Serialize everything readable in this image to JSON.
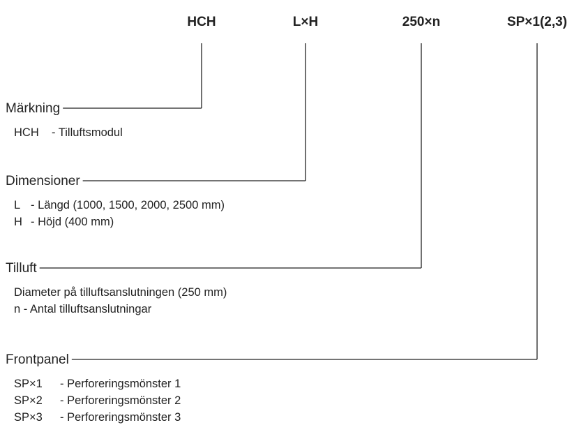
{
  "codes": [
    "HCH",
    "L×H",
    "250×n",
    "SP×1(2,3)"
  ],
  "groups": [
    {
      "label": "Märkning",
      "items": [
        {
          "code": "HCH",
          "text": "- Tilluftsmodul"
        }
      ]
    },
    {
      "label": "Dimensioner",
      "items": [
        {
          "code": "L",
          "text": "- Längd (1000, 1500, 2000, 2500 mm)"
        },
        {
          "code": "H",
          "text": "- Höjd (400 mm)"
        }
      ]
    },
    {
      "label": "Tilluft",
      "items": [
        {
          "text": "Diameter på tilluftsanslutningen (250 mm)"
        },
        {
          "text": "n - Antal tilluftsanslutningar"
        }
      ]
    },
    {
      "label": "Frontpanel",
      "items": [
        {
          "code": "SP×1",
          "text": "- Perforeringsmönster 1"
        },
        {
          "code": "SP×2",
          "text": "- Perforeringsmönster 2"
        },
        {
          "code": "SP×3",
          "text": "- Perforeringsmönster 3"
        }
      ]
    }
  ]
}
